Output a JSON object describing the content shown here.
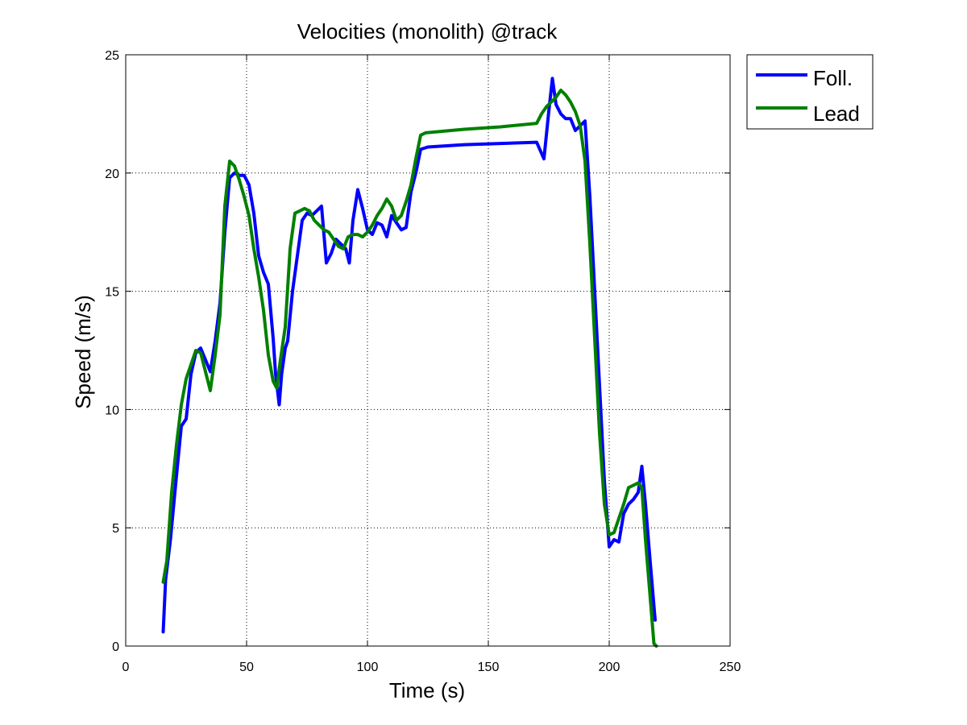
{
  "chart_data": {
    "type": "line",
    "title": "Velocities (monolith) @track",
    "xlabel": "Time (s)",
    "ylabel": "Speed (m/s)",
    "xlim": [
      0,
      250
    ],
    "ylim": [
      0,
      25
    ],
    "xticks": [
      0,
      50,
      100,
      150,
      200,
      250
    ],
    "yticks": [
      0,
      5,
      10,
      15,
      20,
      25
    ],
    "grid": true,
    "legend_position": "outside-top-right",
    "series": [
      {
        "name": "Foll.",
        "color": "#0000ff",
        "points": [
          [
            15.5,
            0.6
          ],
          [
            16.5,
            2.8
          ],
          [
            18.5,
            4.5
          ],
          [
            21,
            7.2
          ],
          [
            23,
            9.3
          ],
          [
            25,
            9.6
          ],
          [
            27,
            11.5
          ],
          [
            29,
            12.4
          ],
          [
            31,
            12.6
          ],
          [
            33,
            12.1
          ],
          [
            35,
            11.6
          ],
          [
            37,
            12.9
          ],
          [
            39,
            14.5
          ],
          [
            41,
            17.5
          ],
          [
            43,
            19.8
          ],
          [
            45,
            20.0
          ],
          [
            47,
            19.9
          ],
          [
            49,
            19.9
          ],
          [
            51,
            19.5
          ],
          [
            53,
            18.3
          ],
          [
            55,
            16.5
          ],
          [
            57,
            15.8
          ],
          [
            59,
            15.3
          ],
          [
            61,
            13.0
          ],
          [
            62,
            11.5
          ],
          [
            63.5,
            10.2
          ],
          [
            64.5,
            11.5
          ],
          [
            66,
            12.6
          ],
          [
            67,
            12.9
          ],
          [
            69,
            15.0
          ],
          [
            71,
            16.5
          ],
          [
            73,
            18.0
          ],
          [
            75,
            18.3
          ],
          [
            77,
            18.2
          ],
          [
            79,
            18.4
          ],
          [
            81,
            18.6
          ],
          [
            83,
            16.2
          ],
          [
            85,
            16.6
          ],
          [
            87,
            17.2
          ],
          [
            89,
            17.0
          ],
          [
            91,
            16.8
          ],
          [
            92.5,
            16.2
          ],
          [
            94,
            18.0
          ],
          [
            96,
            19.3
          ],
          [
            98,
            18.5
          ],
          [
            100,
            17.6
          ],
          [
            102,
            17.4
          ],
          [
            104,
            17.9
          ],
          [
            106,
            17.8
          ],
          [
            108,
            17.3
          ],
          [
            110,
            18.2
          ],
          [
            112,
            17.9
          ],
          [
            114,
            17.6
          ],
          [
            116,
            17.7
          ],
          [
            118,
            19.2
          ],
          [
            120,
            20.0
          ],
          [
            122,
            21.0
          ],
          [
            125,
            21.1
          ],
          [
            140,
            21.2
          ],
          [
            155,
            21.25
          ],
          [
            170,
            21.3
          ],
          [
            173,
            20.6
          ],
          [
            175,
            22.6
          ],
          [
            176.5,
            24.0
          ],
          [
            178,
            22.9
          ],
          [
            180,
            22.5
          ],
          [
            182,
            22.3
          ],
          [
            184,
            22.3
          ],
          [
            186,
            21.8
          ],
          [
            188,
            22.0
          ],
          [
            190,
            22.2
          ],
          [
            192,
            19.0
          ],
          [
            194,
            15.0
          ],
          [
            196,
            11.0
          ],
          [
            198,
            7.0
          ],
          [
            200,
            4.2
          ],
          [
            202,
            4.5
          ],
          [
            204,
            4.4
          ],
          [
            206,
            5.6
          ],
          [
            208,
            6.0
          ],
          [
            210,
            6.2
          ],
          [
            212,
            6.5
          ],
          [
            213.5,
            7.6
          ],
          [
            215,
            6.0
          ],
          [
            217,
            3.5
          ],
          [
            219,
            1.1
          ]
        ]
      },
      {
        "name": "Lead",
        "color": "#008000",
        "points": [
          [
            15.5,
            2.7
          ],
          [
            17,
            3.6
          ],
          [
            19,
            6.5
          ],
          [
            21,
            8.5
          ],
          [
            23,
            10.2
          ],
          [
            25,
            11.3
          ],
          [
            27,
            11.9
          ],
          [
            29,
            12.5
          ],
          [
            31,
            12.4
          ],
          [
            33,
            11.6
          ],
          [
            35,
            10.8
          ],
          [
            37,
            12.3
          ],
          [
            39,
            14.0
          ],
          [
            41,
            18.6
          ],
          [
            43,
            20.5
          ],
          [
            45,
            20.3
          ],
          [
            47,
            19.7
          ],
          [
            49,
            19.0
          ],
          [
            51,
            18.2
          ],
          [
            53,
            16.8
          ],
          [
            55,
            15.6
          ],
          [
            57,
            14.2
          ],
          [
            59,
            12.3
          ],
          [
            61,
            11.2
          ],
          [
            62.5,
            10.9
          ],
          [
            64,
            12.1
          ],
          [
            66,
            13.5
          ],
          [
            68,
            16.8
          ],
          [
            70,
            18.3
          ],
          [
            72,
            18.4
          ],
          [
            74,
            18.5
          ],
          [
            76,
            18.4
          ],
          [
            78,
            18.0
          ],
          [
            80,
            17.8
          ],
          [
            82,
            17.6
          ],
          [
            84,
            17.5
          ],
          [
            86,
            17.2
          ],
          [
            88,
            16.9
          ],
          [
            90,
            16.8
          ],
          [
            92,
            17.3
          ],
          [
            94,
            17.4
          ],
          [
            96,
            17.4
          ],
          [
            98,
            17.3
          ],
          [
            100,
            17.5
          ],
          [
            102,
            17.8
          ],
          [
            104,
            18.2
          ],
          [
            106,
            18.5
          ],
          [
            108,
            18.9
          ],
          [
            110,
            18.6
          ],
          [
            112,
            18.0
          ],
          [
            114,
            18.2
          ],
          [
            116,
            18.8
          ],
          [
            118,
            19.5
          ],
          [
            120,
            20.6
          ],
          [
            122,
            21.6
          ],
          [
            124,
            21.7
          ],
          [
            140,
            21.85
          ],
          [
            155,
            21.95
          ],
          [
            170,
            22.1
          ],
          [
            172,
            22.5
          ],
          [
            174,
            22.8
          ],
          [
            176,
            23.0
          ],
          [
            178,
            23.2
          ],
          [
            180,
            23.5
          ],
          [
            182,
            23.3
          ],
          [
            184,
            23.0
          ],
          [
            186,
            22.6
          ],
          [
            188,
            22.0
          ],
          [
            190,
            20.5
          ],
          [
            192,
            17.0
          ],
          [
            194,
            13.0
          ],
          [
            196,
            9.0
          ],
          [
            198,
            6.0
          ],
          [
            200,
            4.7
          ],
          [
            202,
            4.8
          ],
          [
            204,
            5.4
          ],
          [
            206,
            6.0
          ],
          [
            208,
            6.7
          ],
          [
            210,
            6.8
          ],
          [
            212,
            6.9
          ],
          [
            213.5,
            6.7
          ],
          [
            215,
            4.5
          ],
          [
            217,
            2.0
          ],
          [
            218.5,
            0.1
          ],
          [
            219.5,
            0.0
          ]
        ]
      }
    ]
  }
}
